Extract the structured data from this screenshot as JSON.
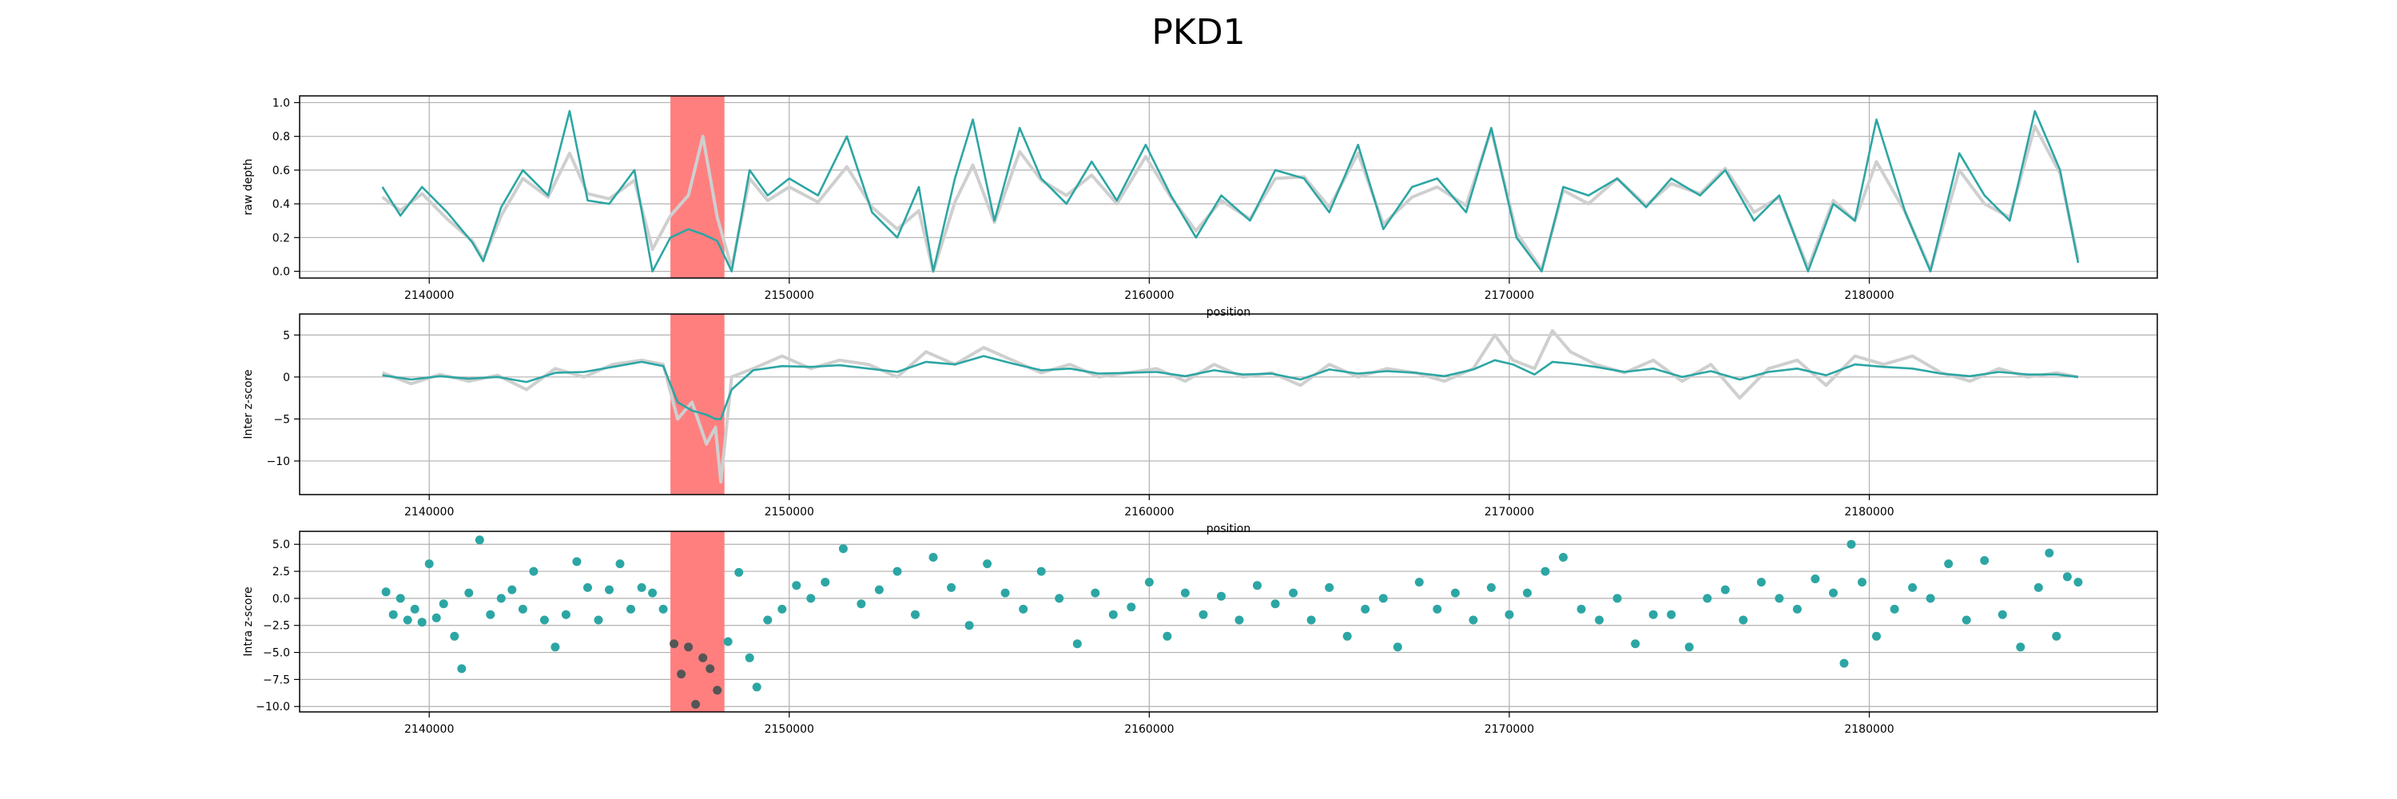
{
  "title": "PKD1",
  "colors": {
    "line": "#2ca6a4",
    "raw": "#cfcfcf",
    "highlight": "#ff7f7f",
    "grid": "#b0b0b0",
    "dot": "#2ca6a4",
    "dot_in_region": "#555555"
  },
  "chart_data": [
    {
      "type": "line",
      "id": "raw-depth",
      "xlabel": "position",
      "ylabel": "raw depth",
      "xlim": [
        2136400,
        2188000
      ],
      "ylim": [
        -0.04,
        1.04
      ],
      "xticks": [
        2140000,
        2150000,
        2160000,
        2170000,
        2180000
      ],
      "xtick_labels": [
        "2140000",
        "2150000",
        "2160000",
        "2170000",
        "2180000"
      ],
      "yticks": [
        0.0,
        0.2,
        0.4,
        0.6,
        0.8,
        1.0
      ],
      "ytick_labels": [
        "0.0",
        "0.2",
        "0.4",
        "0.6",
        "0.8",
        "1.0"
      ],
      "grid": true,
      "highlight_region": [
        2146700,
        2148200
      ],
      "series": [
        {
          "role": "raw",
          "x": [
            2138700,
            2139200,
            2139800,
            2140500,
            2141200,
            2141500,
            2142000,
            2142600,
            2143300,
            2143900,
            2144400,
            2145000,
            2145700,
            2146200,
            2146700,
            2147200,
            2147600,
            2148000,
            2148400,
            2148900,
            2149400,
            2150000,
            2150800,
            2151600,
            2152300,
            2153000,
            2153600,
            2154000,
            2154600,
            2155100,
            2155700,
            2156400,
            2157000,
            2157700,
            2158400,
            2159100,
            2159900,
            2160600,
            2161300,
            2162000,
            2162800,
            2163500,
            2164300,
            2165000,
            2165800,
            2166500,
            2167300,
            2168000,
            2168800,
            2169500,
            2170200,
            2170900,
            2171500,
            2172200,
            2173000,
            2173800,
            2174500,
            2175300,
            2176000,
            2176800,
            2177500,
            2178300,
            2179000,
            2179600,
            2180200,
            2181000,
            2181700,
            2182500,
            2183200,
            2183900,
            2184600,
            2185300,
            2185800
          ],
          "y": [
            0.44,
            0.36,
            0.46,
            0.31,
            0.18,
            0.07,
            0.33,
            0.55,
            0.44,
            0.7,
            0.46,
            0.43,
            0.54,
            0.13,
            0.33,
            0.45,
            0.8,
            0.32,
            0.02,
            0.55,
            0.42,
            0.5,
            0.41,
            0.62,
            0.38,
            0.25,
            0.36,
            0.0,
            0.41,
            0.63,
            0.29,
            0.71,
            0.54,
            0.45,
            0.57,
            0.4,
            0.68,
            0.44,
            0.24,
            0.42,
            0.31,
            0.55,
            0.56,
            0.38,
            0.7,
            0.28,
            0.44,
            0.5,
            0.39,
            0.84,
            0.23,
            0.01,
            0.48,
            0.4,
            0.55,
            0.39,
            0.52,
            0.46,
            0.61,
            0.35,
            0.44,
            0.02,
            0.42,
            0.3,
            0.65,
            0.35,
            0.01,
            0.6,
            0.4,
            0.32,
            0.86,
            0.58,
            0.07
          ]
        },
        {
          "role": "smoothed",
          "x": [
            2138700,
            2139200,
            2139800,
            2140500,
            2141200,
            2141500,
            2142000,
            2142600,
            2143300,
            2143900,
            2144400,
            2145000,
            2145700,
            2146200,
            2146700,
            2147200,
            2147600,
            2148000,
            2148400,
            2148900,
            2149400,
            2150000,
            2150800,
            2151600,
            2152300,
            2153000,
            2153600,
            2154000,
            2154600,
            2155100,
            2155700,
            2156400,
            2157000,
            2157700,
            2158400,
            2159100,
            2159900,
            2160600,
            2161300,
            2162000,
            2162800,
            2163500,
            2164300,
            2165000,
            2165800,
            2166500,
            2167300,
            2168000,
            2168800,
            2169500,
            2170200,
            2170900,
            2171500,
            2172200,
            2173000,
            2173800,
            2174500,
            2175300,
            2176000,
            2176800,
            2177500,
            2178300,
            2179000,
            2179600,
            2180200,
            2181000,
            2181700,
            2182500,
            2183200,
            2183900,
            2184600,
            2185300,
            2185800
          ],
          "y": [
            0.5,
            0.33,
            0.5,
            0.35,
            0.17,
            0.06,
            0.38,
            0.6,
            0.45,
            0.95,
            0.42,
            0.4,
            0.6,
            0.0,
            0.2,
            0.25,
            0.22,
            0.18,
            0.0,
            0.6,
            0.45,
            0.55,
            0.45,
            0.8,
            0.35,
            0.2,
            0.5,
            0.0,
            0.55,
            0.9,
            0.3,
            0.85,
            0.55,
            0.4,
            0.65,
            0.42,
            0.75,
            0.45,
            0.2,
            0.45,
            0.3,
            0.6,
            0.55,
            0.35,
            0.75,
            0.25,
            0.5,
            0.55,
            0.35,
            0.85,
            0.2,
            0.0,
            0.5,
            0.45,
            0.55,
            0.38,
            0.55,
            0.45,
            0.6,
            0.3,
            0.45,
            0.0,
            0.4,
            0.3,
            0.9,
            0.35,
            0.0,
            0.7,
            0.45,
            0.3,
            0.95,
            0.6,
            0.05
          ]
        }
      ]
    },
    {
      "type": "line",
      "id": "inter-zscore",
      "xlabel": "position",
      "ylabel": "Inter z-score",
      "xlim": [
        2136400,
        2188000
      ],
      "ylim": [
        -14,
        7.5
      ],
      "xticks": [
        2140000,
        2150000,
        2160000,
        2170000,
        2180000
      ],
      "xtick_labels": [
        "2140000",
        "2150000",
        "2160000",
        "2170000",
        "2180000"
      ],
      "yticks": [
        5,
        0,
        -5,
        -10
      ],
      "ytick_labels": [
        "5",
        "0",
        "−5",
        "−10"
      ],
      "grid": true,
      "highlight_region": [
        2146700,
        2148200
      ],
      "series": [
        {
          "role": "raw",
          "x": [
            2138700,
            2139500,
            2140300,
            2141100,
            2141900,
            2142700,
            2143500,
            2144300,
            2145100,
            2145900,
            2146500,
            2146900,
            2147300,
            2147700,
            2147950,
            2148100,
            2148400,
            2149000,
            2149800,
            2150600,
            2151400,
            2152200,
            2153000,
            2153800,
            2154600,
            2155400,
            2156200,
            2157000,
            2157800,
            2158600,
            2159400,
            2160200,
            2161000,
            2161800,
            2162600,
            2163400,
            2164200,
            2165000,
            2165800,
            2166600,
            2167400,
            2168200,
            2169000,
            2169600,
            2170100,
            2170700,
            2171200,
            2171700,
            2172400,
            2173200,
            2174000,
            2174800,
            2175600,
            2176400,
            2177200,
            2178000,
            2178800,
            2179600,
            2180400,
            2181200,
            2182000,
            2182800,
            2183600,
            2184400,
            2185200,
            2185800
          ],
          "y": [
            0.5,
            -0.8,
            0.3,
            -0.5,
            0.2,
            -1.5,
            1.0,
            0.0,
            1.5,
            2.0,
            1.5,
            -5.0,
            -3.0,
            -8.0,
            -6.0,
            -12.5,
            0.0,
            1.0,
            2.5,
            1.0,
            2.0,
            1.5,
            0.0,
            3.0,
            1.5,
            3.5,
            2.0,
            0.5,
            1.5,
            0.0,
            0.5,
            1.0,
            -0.5,
            1.5,
            0.0,
            0.5,
            -1.0,
            1.5,
            0.0,
            1.0,
            0.5,
            -0.5,
            1.0,
            5.0,
            2.0,
            1.0,
            5.5,
            3.0,
            1.5,
            0.5,
            2.0,
            -0.5,
            1.5,
            -2.5,
            1.0,
            2.0,
            -1.0,
            2.5,
            1.5,
            2.5,
            0.5,
            -0.5,
            1.0,
            0.0,
            0.5,
            0.0
          ]
        },
        {
          "role": "smoothed",
          "x": [
            2138700,
            2139500,
            2140300,
            2141100,
            2141900,
            2142700,
            2143500,
            2144300,
            2145100,
            2145900,
            2146500,
            2146900,
            2147300,
            2147700,
            2147950,
            2148100,
            2148400,
            2149000,
            2149800,
            2150600,
            2151400,
            2152200,
            2153000,
            2153800,
            2154600,
            2155400,
            2156200,
            2157000,
            2157800,
            2158600,
            2159400,
            2160200,
            2161000,
            2161800,
            2162600,
            2163400,
            2164200,
            2165000,
            2165800,
            2166600,
            2167400,
            2168200,
            2169000,
            2169600,
            2170100,
            2170700,
            2171200,
            2171700,
            2172400,
            2173200,
            2174000,
            2174800,
            2175600,
            2176400,
            2177200,
            2178000,
            2178800,
            2179600,
            2180400,
            2181200,
            2182000,
            2182800,
            2183600,
            2184400,
            2185200,
            2185800
          ],
          "y": [
            0.2,
            -0.3,
            0.1,
            -0.2,
            0.0,
            -0.6,
            0.5,
            0.6,
            1.2,
            1.8,
            1.3,
            -3.0,
            -4.0,
            -4.5,
            -5.0,
            -5.0,
            -1.5,
            0.8,
            1.3,
            1.2,
            1.4,
            1.0,
            0.6,
            1.8,
            1.5,
            2.5,
            1.6,
            0.8,
            1.0,
            0.4,
            0.5,
            0.6,
            0.1,
            0.8,
            0.3,
            0.4,
            -0.3,
            0.9,
            0.4,
            0.7,
            0.5,
            0.1,
            0.9,
            2.0,
            1.5,
            0.3,
            1.8,
            1.6,
            1.2,
            0.6,
            1.0,
            0.0,
            0.7,
            -0.3,
            0.6,
            1.0,
            0.2,
            1.5,
            1.2,
            1.0,
            0.4,
            0.1,
            0.6,
            0.3,
            0.3,
            0.0
          ]
        }
      ]
    },
    {
      "type": "scatter",
      "id": "intra-zscore",
      "xlabel": "",
      "ylabel": "Intra z-score",
      "xlim": [
        2136400,
        2188000
      ],
      "ylim": [
        -10.5,
        6.2
      ],
      "xticks": [
        2140000,
        2150000,
        2160000,
        2170000,
        2180000
      ],
      "xtick_labels": [
        "2140000",
        "2150000",
        "2160000",
        "2170000",
        "2180000"
      ],
      "yticks": [
        5.0,
        2.5,
        0.0,
        -2.5,
        -5.0,
        -7.5,
        -10.0
      ],
      "ytick_labels": [
        "5.0",
        "2.5",
        "0.0",
        "−2.5",
        "−5.0",
        "−7.5",
        "−10.0"
      ],
      "grid": true,
      "highlight_region": [
        2146700,
        2148200
      ],
      "x": [
        2138800,
        2139000,
        2139200,
        2139400,
        2139600,
        2139800,
        2140000,
        2140200,
        2140400,
        2140700,
        2140900,
        2141100,
        2141400,
        2141700,
        2142000,
        2142300,
        2142600,
        2142900,
        2143200,
        2143500,
        2143800,
        2144100,
        2144400,
        2144700,
        2145000,
        2145300,
        2145600,
        2145900,
        2146200,
        2146500,
        2146800,
        2147000,
        2147200,
        2147400,
        2147600,
        2147800,
        2148000,
        2148300,
        2148600,
        2148900,
        2149100,
        2149400,
        2149800,
        2150200,
        2150600,
        2151000,
        2151500,
        2152000,
        2152500,
        2153000,
        2153500,
        2154000,
        2154500,
        2155000,
        2155500,
        2156000,
        2156500,
        2157000,
        2157500,
        2158000,
        2158500,
        2159000,
        2159500,
        2160000,
        2160500,
        2161000,
        2161500,
        2162000,
        2162500,
        2163000,
        2163500,
        2164000,
        2164500,
        2165000,
        2165500,
        2166000,
        2166500,
        2166900,
        2167500,
        2168000,
        2168500,
        2169000,
        2169500,
        2170000,
        2170500,
        2171000,
        2171500,
        2172000,
        2172500,
        2173000,
        2173500,
        2174000,
        2174500,
        2175000,
        2175500,
        2176000,
        2176500,
        2177000,
        2177500,
        2178000,
        2178500,
        2179000,
        2179300,
        2179500,
        2179800,
        2180200,
        2180700,
        2181200,
        2181700,
        2182200,
        2182700,
        2183200,
        2183700,
        2184200,
        2184700,
        2185000,
        2185200,
        2185500,
        2185800
      ],
      "y": [
        0.6,
        -1.5,
        0.0,
        -2.0,
        -1.0,
        -2.2,
        3.2,
        -1.8,
        -0.5,
        -3.5,
        -6.5,
        0.5,
        5.4,
        -1.5,
        0.0,
        0.8,
        -1.0,
        2.5,
        -2.0,
        -4.5,
        -1.5,
        3.4,
        1.0,
        -2.0,
        0.8,
        3.2,
        -1.0,
        1.0,
        0.5,
        -1.0,
        -4.2,
        -7.0,
        -4.5,
        -9.8,
        -5.5,
        -6.5,
        -8.5,
        -4.0,
        2.4,
        -5.5,
        -8.2,
        -2.0,
        -1.0,
        1.2,
        0.0,
        1.5,
        4.6,
        -0.5,
        0.8,
        2.5,
        -1.5,
        3.8,
        1.0,
        -2.5,
        3.2,
        0.5,
        -1.0,
        2.5,
        0.0,
        -4.2,
        0.5,
        -1.5,
        -0.8,
        1.5,
        -3.5,
        0.5,
        -1.5,
        0.2,
        -2.0,
        1.2,
        -0.5,
        0.5,
        -2.0,
        1.0,
        -3.5,
        -1.0,
        0.0,
        -4.5,
        1.5,
        -1.0,
        0.5,
        -2.0,
        1.0,
        -1.5,
        0.5,
        2.5,
        3.8,
        -1.0,
        -2.0,
        0.0,
        -4.2,
        -1.5,
        -1.5,
        -4.5,
        0.0,
        0.8,
        -2.0,
        1.5,
        0.0,
        -1.0,
        1.8,
        0.5,
        -6.0,
        5.0,
        1.5,
        -3.5,
        -1.0,
        1.0,
        0.0,
        3.2,
        -2.0,
        3.5,
        -1.5,
        -4.5,
        1.0,
        4.2,
        -3.5,
        2.0,
        1.5
      ]
    }
  ]
}
